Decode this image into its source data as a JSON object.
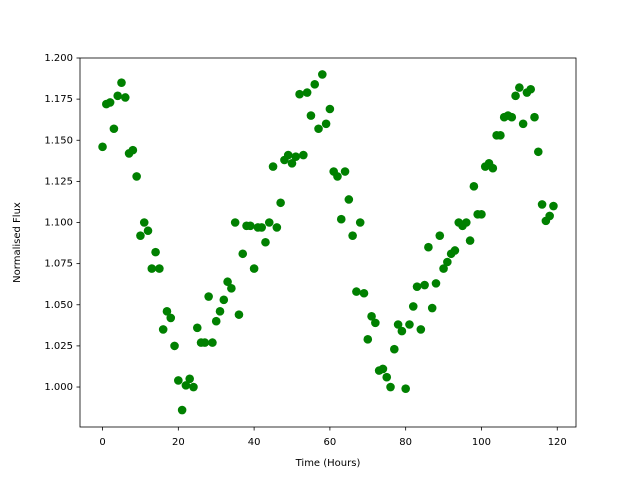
{
  "chart_data": {
    "type": "scatter",
    "xlabel": "Time (Hours)",
    "ylabel": "Normalised Flux",
    "xlim": [
      -5.95,
      124.95
    ],
    "ylim": [
      0.9757,
      1.2
    ],
    "xticks": [
      0,
      20,
      40,
      60,
      80,
      100,
      120
    ],
    "yticks": [
      {
        "value": 1.0,
        "label": "1.000"
      },
      {
        "value": 1.025,
        "label": "1.025"
      },
      {
        "value": 1.05,
        "label": "1.050"
      },
      {
        "value": 1.075,
        "label": "1.075"
      },
      {
        "value": 1.1,
        "label": "1.100"
      },
      {
        "value": 1.125,
        "label": "1.125"
      },
      {
        "value": 1.15,
        "label": "1.150"
      },
      {
        "value": 1.175,
        "label": "1.175"
      },
      {
        "value": 1.2,
        "label": "1.200"
      }
    ],
    "series": [
      {
        "color": "green",
        "x": [
          0,
          1,
          2,
          3,
          4,
          5,
          6,
          7,
          8,
          9,
          10,
          11,
          12,
          13,
          14,
          15,
          16,
          17,
          18,
          19,
          20,
          21,
          22,
          23,
          24,
          25,
          26,
          27,
          28,
          29,
          30,
          31,
          32,
          33,
          34,
          35,
          36,
          37,
          38,
          39,
          40,
          41,
          42,
          43,
          44,
          45,
          46,
          47,
          48,
          49,
          50,
          51,
          52,
          53,
          54,
          55,
          56,
          57,
          58,
          59,
          60,
          61,
          62,
          63,
          64,
          65,
          66,
          67,
          68,
          69,
          70,
          71,
          72,
          73,
          74,
          75,
          76,
          77,
          78,
          79,
          80,
          81,
          82,
          83,
          84,
          85,
          86,
          87,
          88,
          89,
          90,
          91,
          92,
          93,
          94,
          95,
          96,
          97,
          98,
          99,
          100,
          101,
          102,
          103,
          104,
          105,
          106,
          107,
          108,
          109,
          110,
          111,
          112,
          113,
          114,
          115,
          116,
          117,
          118,
          119
        ],
        "values": [
          1.146,
          1.172,
          1.173,
          1.157,
          1.177,
          1.185,
          1.176,
          1.142,
          1.144,
          1.128,
          1.092,
          1.1,
          1.095,
          1.072,
          1.082,
          1.072,
          1.035,
          1.046,
          1.042,
          1.025,
          1.004,
          0.986,
          1.001,
          1.005,
          1.0,
          1.036,
          1.027,
          1.027,
          1.055,
          1.027,
          1.04,
          1.046,
          1.053,
          1.064,
          1.06,
          1.1,
          1.044,
          1.081,
          1.098,
          1.098,
          1.072,
          1.097,
          1.097,
          1.088,
          1.1,
          1.134,
          1.097,
          1.112,
          1.138,
          1.141,
          1.136,
          1.14,
          1.178,
          1.141,
          1.179,
          1.165,
          1.184,
          1.157,
          1.19,
          1.16,
          1.169,
          1.131,
          1.128,
          1.102,
          1.131,
          1.114,
          1.092,
          1.058,
          1.1,
          1.057,
          1.029,
          1.043,
          1.039,
          1.01,
          1.011,
          1.006,
          1.0,
          1.023,
          1.038,
          1.034,
          0.999,
          1.038,
          1.049,
          1.061,
          1.035,
          1.062,
          1.085,
          1.048,
          1.063,
          1.092,
          1.072,
          1.076,
          1.081,
          1.083,
          1.1,
          1.098,
          1.1,
          1.089,
          1.122,
          1.105,
          1.105,
          1.134,
          1.136,
          1.133,
          1.153,
          1.153,
          1.164,
          1.165,
          1.164,
          1.177,
          1.182,
          1.16,
          1.179,
          1.181,
          1.164,
          1.143,
          1.111,
          1.101,
          1.104,
          1.11
        ]
      }
    ]
  }
}
